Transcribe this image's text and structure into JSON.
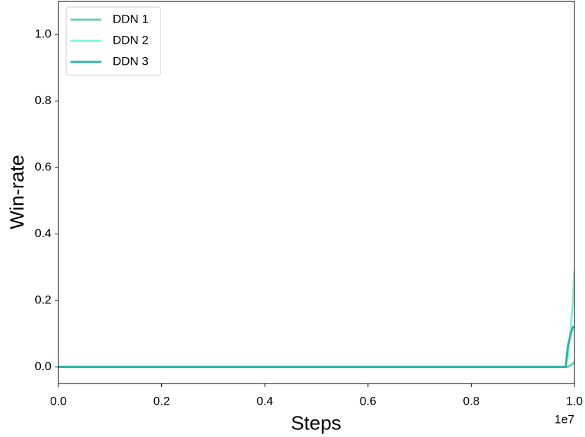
{
  "chart_data": {
    "type": "line",
    "xlabel": "Steps",
    "ylabel": "Win-rate",
    "x_offset_label": "1e7",
    "x": [
      0,
      9830000,
      9870000,
      9930000,
      9970000,
      10000000
    ],
    "series": [
      {
        "name": "DDN 1",
        "color": "#6ccbb8",
        "values": [
          0,
          0,
          0,
          0.005,
          0.01,
          0.015
        ]
      },
      {
        "name": "DDN 2",
        "color": "#7ff5dc",
        "values": [
          0,
          0,
          0.03,
          0.12,
          0.2,
          0.29
        ]
      },
      {
        "name": "DDN 3",
        "color": "#2ab5a8",
        "values": [
          0,
          0,
          0.06,
          0.1,
          0.12,
          0.12
        ]
      }
    ],
    "xlim": [
      0,
      10000000
    ],
    "xticks": [
      {
        "value": 0,
        "label": "0.0"
      },
      {
        "value": 2000000,
        "label": "0.2"
      },
      {
        "value": 4000000,
        "label": "0.4"
      },
      {
        "value": 6000000,
        "label": "0.6"
      },
      {
        "value": 8000000,
        "label": "0.8"
      },
      {
        "value": 10000000,
        "label": "1.0"
      }
    ],
    "ylim": [
      -0.05,
      1.1
    ],
    "yticks": [
      {
        "value": 0,
        "label": "0.0"
      },
      {
        "value": 0.2,
        "label": "0.2"
      },
      {
        "value": 0.4,
        "label": "0.4"
      },
      {
        "value": 0.6,
        "label": "0.6"
      },
      {
        "value": 0.8,
        "label": "0.8"
      },
      {
        "value": 1,
        "label": "1.0"
      }
    ],
    "legend": "upper left",
    "grid": false
  }
}
